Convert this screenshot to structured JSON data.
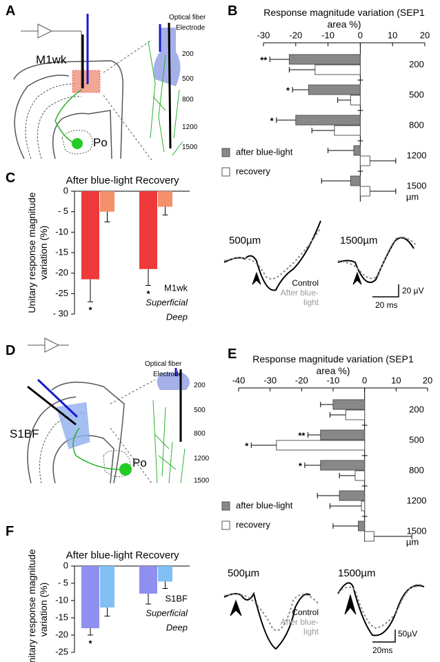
{
  "panel_labels": [
    "A",
    "B",
    "C",
    "D",
    "E",
    "F"
  ],
  "diagram_a": {
    "region": "M1wk",
    "nucleus": "Po",
    "optical_fiber": "Optical fiber",
    "electrode": "Electrode",
    "depths": [
      "200",
      "500",
      "800",
      "1200",
      "1500"
    ]
  },
  "diagram_d": {
    "region": "S1BF",
    "nucleus": "Po",
    "optical_fiber": "Optical fiber",
    "electrode": "Electrode",
    "depths": [
      "200",
      "500",
      "800",
      "1200",
      "1500"
    ]
  },
  "traces_b": {
    "left": "500µm",
    "right": "1500µm",
    "control": "Control",
    "after": "After blue-light",
    "scale_y": "20 µV",
    "scale_x": "20 ms"
  },
  "traces_e": {
    "left": "500µm",
    "right": "1500µm",
    "control": "Control",
    "after": "After blue-light",
    "scale_y": "50µV",
    "scale_x": "20ms"
  },
  "chart_data": [
    {
      "type": "hbar",
      "title": "Response magnitude variation (SEP1 area %)",
      "categories": [
        "200",
        "500",
        "800",
        "1200",
        "1500"
      ],
      "category_unit": "µm",
      "xlim": [
        -30,
        20
      ],
      "xticks": [
        -30,
        -20,
        -10,
        0,
        10,
        20
      ],
      "series": [
        {
          "name": "after blue-light",
          "color": "#888888",
          "values": [
            -22,
            -16,
            -20,
            -2,
            -3
          ],
          "errors": [
            6,
            5,
            6,
            8,
            9
          ],
          "significance": [
            "**",
            "*",
            "*",
            null,
            null
          ]
        },
        {
          "name": "recovery",
          "color": "#ffffff",
          "values": [
            -14,
            -3,
            -8,
            3,
            3
          ],
          "errors": [
            8,
            4,
            7,
            8,
            8
          ],
          "significance": [
            null,
            null,
            null,
            null,
            null
          ]
        }
      ]
    },
    {
      "type": "bar",
      "y_label": "Unitary response magnitude variation (%)",
      "legend_title": "M1wk",
      "categories": [
        "After blue-light",
        "Recovery"
      ],
      "ylim": [
        -30,
        0
      ],
      "yticks": [
        0,
        {
          "value": -5,
          "label": "- 5"
        },
        -10,
        -15,
        -20,
        -25,
        {
          "value": -30,
          "label": "- 30"
        }
      ],
      "series": [
        {
          "name": "Superficial",
          "color": "#ee3a3a",
          "values": [
            -21.5,
            -19
          ],
          "errors": [
            5.5,
            4
          ],
          "significance": [
            "*",
            "*"
          ]
        },
        {
          "name": "Deep",
          "color": "#f4906a",
          "values": [
            -5,
            -3.8
          ],
          "errors": [
            2.5,
            2
          ],
          "significance": [
            null,
            null
          ]
        }
      ]
    },
    {
      "type": "hbar",
      "title": "Response magnitude variation (SEP1 area %)",
      "categories": [
        "200",
        "500",
        "800",
        "1200",
        "1500"
      ],
      "category_unit": "µm",
      "xlim": [
        -40,
        20
      ],
      "xticks": [
        -40,
        -30,
        -20,
        -10,
        0,
        10,
        20
      ],
      "series": [
        {
          "name": "after blue-light",
          "color": "#888888",
          "values": [
            -10,
            -14,
            -14,
            -8,
            -2
          ],
          "errors": [
            4,
            4,
            5,
            7,
            8
          ],
          "significance": [
            null,
            "**",
            "*",
            null,
            null
          ]
        },
        {
          "name": "recovery",
          "color": "#ffffff",
          "values": [
            -6,
            -28,
            -3,
            -1,
            3
          ],
          "errors": [
            5,
            8,
            5,
            10,
            12
          ],
          "significance": [
            null,
            "*",
            null,
            null,
            null
          ]
        }
      ]
    },
    {
      "type": "bar",
      "y_label": "Unitary response magnitude variation (%)",
      "legend_title": "S1BF",
      "categories": [
        "After blue-light",
        "Recovery"
      ],
      "ylim": [
        -25,
        0
      ],
      "yticks": [
        0,
        {
          "value": -5,
          "label": "- 5"
        },
        -10,
        -15,
        -20,
        -25
      ],
      "series": [
        {
          "name": "Superficial",
          "color": "#8f8ff0",
          "values": [
            -18,
            -8
          ],
          "errors": [
            2,
            3
          ],
          "significance": [
            "*",
            null
          ]
        },
        {
          "name": "Deep",
          "color": "#80c0f5",
          "values": [
            -12,
            -4.5
          ],
          "errors": [
            2.5,
            2
          ],
          "significance": [
            null,
            null
          ]
        }
      ]
    }
  ]
}
